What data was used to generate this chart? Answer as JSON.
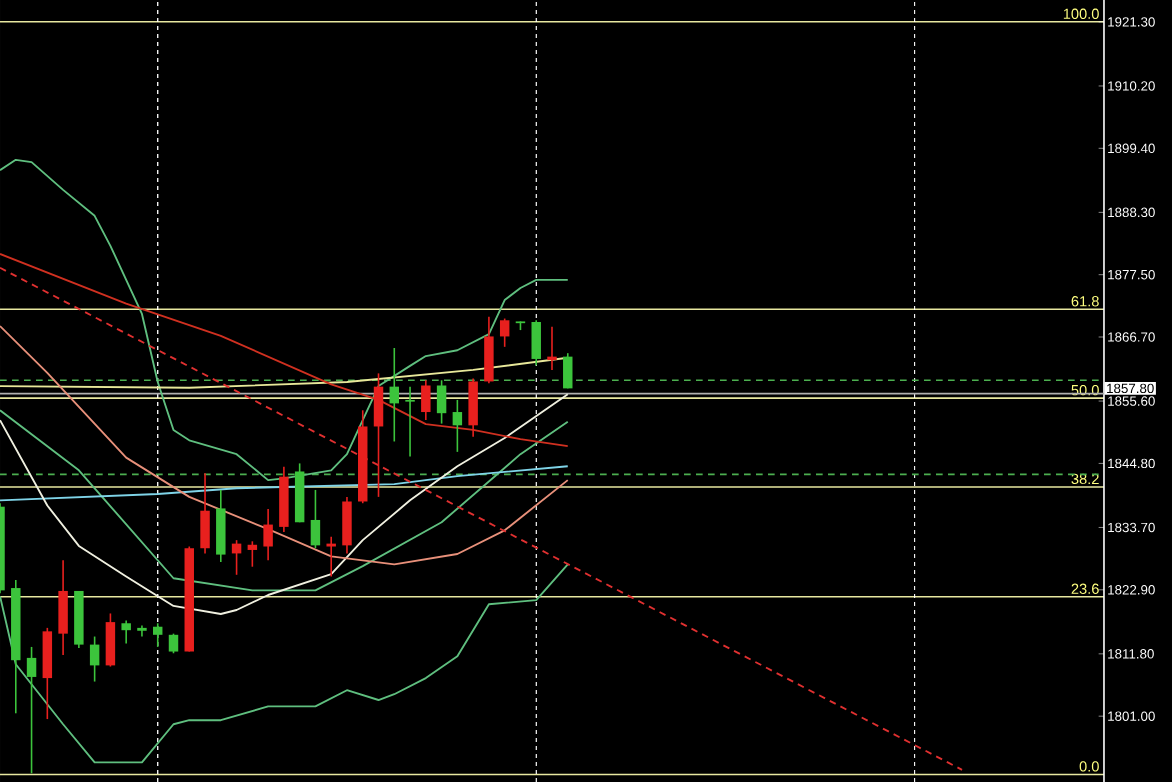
{
  "chart_data": {
    "type": "candlestick",
    "categories": [
      null,
      null,
      null,
      null,
      null,
      null,
      null,
      null,
      null,
      null,
      null,
      null,
      null,
      null,
      null,
      null,
      null,
      null,
      null,
      null,
      null,
      null,
      null,
      null,
      null,
      null,
      null,
      null,
      null,
      null,
      null,
      null,
      null,
      null,
      null,
      null,
      null,
      null,
      null,
      null,
      null,
      null,
      null,
      null,
      null,
      null,
      null,
      null,
      null,
      null,
      null,
      null,
      null,
      null,
      null,
      null,
      null,
      null,
      null,
      null,
      null,
      null,
      null,
      null,
      null,
      null,
      null,
      null,
      null,
      null,
      null
    ],
    "ylim": [
      1789.6,
      1925.1
    ],
    "yticks": [
      {
        "value": 1921.3,
        "label": "1921.30"
      },
      {
        "value": 1910.2,
        "label": "1910.20"
      },
      {
        "value": 1899.4,
        "label": "1899.40"
      },
      {
        "value": 1888.3,
        "label": "1888.30"
      },
      {
        "value": 1877.5,
        "label": "1877.50"
      },
      {
        "value": 1866.7,
        "label": "1866.70"
      },
      {
        "value": 1855.6,
        "label": "1855.60"
      },
      {
        "value": 1844.8,
        "label": "1844.80"
      },
      {
        "value": 1833.7,
        "label": "1833.70"
      },
      {
        "value": 1822.9,
        "label": "1822.90"
      },
      {
        "value": 1811.8,
        "label": "1811.80"
      },
      {
        "value": 1801.0,
        "label": "1801.00"
      }
    ],
    "y2lim": [
      -1.0,
      102.9
    ],
    "y2ticks": [
      {
        "value": 0,
        "label": "0.0"
      },
      {
        "value": 23.6,
        "label": "23.6"
      },
      {
        "value": 38.2,
        "label": "38.2"
      },
      {
        "value": 50,
        "label": "50.0"
      },
      {
        "value": 61.8,
        "label": "61.8"
      },
      {
        "value": 100,
        "label": "100.0"
      }
    ],
    "marker": "none",
    "grid": "x",
    "series": [
      {
        "type": "line",
        "color": "#5fbf7f",
        "values": [
          1895.6,
          1897.4,
          1897.0,
          null,
          1892.2,
          null,
          1887.7,
          1882.5,
          null,
          1870.7,
          1858.9,
          1850.6,
          1848.8,
          null,
          null,
          1846.4,
          null,
          1841.9,
          1842.2,
          null,
          null,
          1843.6,
          1846.4,
          1852.3,
          1858.2,
          null,
          1861.7,
          1863.4,
          null,
          1864.4,
          null,
          1867.2,
          1873.1,
          1875.2,
          1876.6,
          null,
          1876.6,
          null,
          null,
          null,
          null,
          null,
          null,
          null,
          null,
          null,
          null,
          null,
          null,
          null,
          null,
          null,
          null,
          null,
          null,
          null,
          null,
          null,
          null,
          null,
          null,
          null,
          null,
          null,
          null,
          null,
          null,
          null,
          null,
          null,
          null
        ]
      },
      {
        "type": "line",
        "color": "#5fbf7f",
        "values": [
          1854.0,
          null,
          null,
          null,
          null,
          1843.6,
          null,
          null,
          null,
          null,
          null,
          1824.9,
          null,
          null,
          null,
          null,
          1822.8,
          null,
          null,
          null,
          1822.8,
          null,
          null,
          1827.0,
          null,
          null,
          null,
          null,
          1834.6,
          null,
          null,
          null,
          null,
          1846.4,
          null,
          null,
          1852.0,
          null,
          null,
          null,
          null,
          null,
          null,
          null,
          null,
          null,
          null,
          null,
          null,
          null,
          null,
          null,
          null,
          null,
          null,
          null,
          null,
          null,
          null,
          null,
          null,
          null,
          null,
          null,
          null,
          null,
          null,
          null,
          null,
          null,
          null
        ]
      },
      {
        "type": "line",
        "color": "#5fbf7f",
        "values": [
          1821.8,
          1810.0,
          null,
          null,
          1799.6,
          null,
          1793.0,
          null,
          null,
          1793.0,
          null,
          1799.6,
          1800.3,
          null,
          1800.3,
          null,
          null,
          1802.7,
          null,
          null,
          1802.7,
          null,
          1805.5,
          null,
          1803.8,
          1804.8,
          null,
          1807.6,
          null,
          1811.4,
          null,
          1820.4,
          null,
          null,
          1821.1,
          null,
          1827.3,
          null,
          null,
          null,
          null,
          null,
          null,
          null,
          null,
          null,
          null,
          null,
          null,
          null,
          null,
          null,
          null,
          null,
          null,
          null,
          null,
          null,
          null,
          null,
          null,
          null,
          null,
          null,
          null,
          null,
          null,
          null,
          null,
          null,
          null
        ]
      },
      {
        "type": "line",
        "color": "#7fd4e8",
        "values": [
          1838.4,
          null,
          null,
          null,
          null,
          null,
          null,
          null,
          null,
          null,
          1839.5,
          null,
          null,
          null,
          null,
          1840.5,
          null,
          null,
          null,
          null,
          null,
          null,
          null,
          null,
          null,
          1841.2,
          null,
          null,
          null,
          1842.6,
          null,
          null,
          null,
          null,
          null,
          null,
          1844.3,
          null,
          null,
          null,
          null,
          null,
          null,
          null,
          null,
          null,
          null,
          null,
          null,
          null,
          null,
          null,
          null,
          null,
          null,
          null,
          null,
          null,
          null,
          null,
          null,
          null,
          null,
          null,
          null,
          null,
          null,
          null,
          null,
          null,
          null
        ]
      },
      {
        "type": "line",
        "color": "#e8e89a",
        "values": [
          1858.2,
          null,
          null,
          null,
          null,
          null,
          null,
          null,
          null,
          null,
          null,
          null,
          1857.9,
          null,
          null,
          null,
          null,
          null,
          null,
          null,
          null,
          null,
          1858.9,
          null,
          null,
          null,
          null,
          null,
          null,
          null,
          1861.0,
          null,
          null,
          null,
          null,
          null,
          1863.1,
          null,
          null,
          null,
          null,
          null,
          null,
          null,
          null,
          null,
          null,
          null,
          null,
          null,
          null,
          null,
          null,
          null,
          null,
          null,
          null,
          null,
          null,
          null,
          null,
          null,
          null,
          null,
          null,
          null,
          null,
          null,
          null,
          null,
          null
        ]
      },
      {
        "type": "line",
        "color": "#f0f0e0",
        "values": [
          1852.3,
          null,
          null,
          1837.5,
          null,
          1830.5,
          null,
          null,
          1825.2,
          null,
          null,
          1820.1,
          null,
          null,
          1818.7,
          1819.4,
          null,
          1822.0,
          null,
          null,
          null,
          1825.6,
          null,
          1831.5,
          null,
          null,
          1838.4,
          null,
          null,
          1844.3,
          null,
          null,
          1849.2,
          null,
          null,
          null,
          1856.8,
          null,
          null,
          null,
          null,
          null,
          null,
          null,
          null,
          null,
          null,
          null,
          null,
          null,
          null,
          null,
          null,
          null,
          null,
          null,
          null,
          null,
          null,
          null,
          null,
          null,
          null,
          null,
          null,
          null,
          null,
          null,
          null,
          null,
          null
        ]
      },
      {
        "type": "line",
        "color": "#e8907a",
        "values": [
          1868.6,
          null,
          null,
          1860.5,
          null,
          null,
          null,
          null,
          1845.8,
          null,
          null,
          null,
          1839.0,
          null,
          null,
          null,
          null,
          1833.4,
          null,
          null,
          null,
          1828.7,
          null,
          null,
          null,
          1827.3,
          null,
          null,
          null,
          1829.1,
          null,
          null,
          1833.2,
          null,
          null,
          null,
          1841.9,
          null,
          null,
          null,
          null,
          null,
          null,
          null,
          null,
          null,
          null,
          null,
          null,
          null,
          null,
          null,
          null,
          null,
          null,
          null,
          null,
          null,
          null,
          null,
          null,
          null,
          null,
          null,
          null,
          null,
          null,
          null,
          null,
          null,
          null
        ]
      },
      {
        "type": "line",
        "color": "#d03020",
        "values": [
          1881.1,
          null,
          null,
          null,
          null,
          null,
          null,
          null,
          1872.5,
          null,
          null,
          null,
          null,
          null,
          1866.9,
          null,
          null,
          null,
          null,
          null,
          null,
          1858.5,
          null,
          null,
          1855.8,
          null,
          null,
          1851.6,
          null,
          null,
          1850.6,
          null,
          null,
          1849.0,
          null,
          null,
          1847.8,
          null,
          null,
          null,
          null,
          null,
          null,
          null,
          null,
          null,
          null,
          null,
          null,
          null,
          null,
          null,
          null,
          null,
          null,
          null,
          null,
          null,
          null,
          null,
          null,
          null,
          null,
          null,
          null,
          null,
          null,
          null,
          null,
          null,
          null
        ]
      },
      {
        "type": "line",
        "color": "#e03030",
        "line_style": "dashed",
        "values": [
          1878.7,
          null,
          null,
          null,
          null,
          null,
          null,
          null,
          null,
          null,
          null,
          null,
          null,
          null,
          null,
          null,
          null,
          null,
          null,
          null,
          null,
          null,
          null,
          null,
          null,
          null,
          null,
          null,
          null,
          null,
          null,
          null,
          null,
          null,
          null,
          null,
          null,
          null,
          null,
          null,
          null,
          null,
          null,
          null,
          null,
          null,
          null,
          null,
          null,
          null,
          null,
          null,
          null,
          null,
          null,
          null,
          null,
          null,
          null,
          null,
          null,
          1791.7,
          null,
          null,
          null,
          null,
          null,
          null,
          null,
          null,
          null
        ]
      },
      {
        "colors": [
          "#3cc43c",
          "#3cc43c",
          "#3cc43c",
          "#e8201e",
          "#e8201e",
          "#3cc43c",
          "#3cc43c",
          "#e8201e",
          "#3cc43c",
          "#3cc43c",
          "#3cc43c",
          "#3cc43c",
          "#e8201e",
          "#e8201e",
          "#3cc43c",
          "#e8201e",
          "#e8201e",
          "#e8201e",
          "#e8201e",
          "#3cc43c",
          "#3cc43c",
          "#e8201e",
          "#e8201e",
          "#e8201e",
          "#e8201e",
          "#3cc43c",
          "#3cc43c",
          "#e8201e",
          "#3cc43c",
          "#3cc43c",
          "#e8201e",
          "#e8201e",
          "#e8201e",
          "#3cc43c",
          "#3cc43c",
          "#e8201e",
          "#3cc43c",
          null,
          null,
          null,
          null,
          null,
          null,
          null,
          null,
          null,
          null,
          null,
          null,
          null,
          null,
          null,
          null,
          null,
          null,
          null,
          null,
          null,
          null,
          null,
          null,
          null,
          null,
          null,
          null,
          null,
          null,
          null,
          null,
          null,
          null
        ],
        "ohlc": [
          [
            1837.3,
            1837.9,
            1822.3,
            1822.8
          ],
          [
            1823.2,
            1824.6,
            1801.5,
            1810.7
          ],
          [
            1811.1,
            1813.0,
            1791.1,
            1807.8
          ],
          [
            1807.6,
            1816.3,
            1800.5,
            1815.7
          ],
          [
            1815.3,
            1828.0,
            1811.6,
            1822.7
          ],
          [
            1822.7,
            1822.7,
            1812.8,
            1813.4
          ],
          [
            1813.4,
            1814.8,
            1807.0,
            1809.8
          ],
          [
            1809.8,
            1818.8,
            1809.6,
            1817.3
          ],
          [
            1817.1,
            1817.6,
            1813.6,
            1815.9
          ],
          [
            1816.3,
            1816.7,
            1814.8,
            1815.8
          ],
          [
            1816.5,
            1817.1,
            1813.0,
            1815.1
          ],
          [
            1815.1,
            1815.3,
            1811.9,
            1812.2
          ],
          [
            1812.2,
            1830.4,
            1812.2,
            1830.1
          ],
          [
            1830.1,
            1843.1,
            1829.2,
            1836.6
          ],
          [
            1837.0,
            1840.2,
            1827.7,
            1829.0
          ],
          [
            1829.2,
            1831.5,
            1825.5,
            1830.9
          ],
          [
            1829.8,
            1831.3,
            1826.9,
            1830.7
          ],
          [
            1830.4,
            1836.9,
            1828.0,
            1834.2
          ],
          [
            1833.8,
            1844.2,
            1832.9,
            1842.5
          ],
          [
            1843.4,
            1844.8,
            1834.6,
            1834.6
          ],
          [
            1835.0,
            1840.2,
            1830.1,
            1830.6
          ],
          [
            1830.4,
            1832.1,
            1825.2,
            1830.9
          ],
          [
            1830.6,
            1839.0,
            1829.2,
            1838.2
          ],
          [
            1838.2,
            1854.0,
            1837.9,
            1851.2
          ],
          [
            1851.2,
            1860.4,
            1839.0,
            1858.1
          ],
          [
            1858.1,
            1864.8,
            1848.6,
            1855.2
          ],
          [
            1855.8,
            1858.1,
            1846.0,
            1855.5
          ],
          [
            1853.7,
            1859.2,
            1852.3,
            1858.3
          ],
          [
            1858.3,
            1859.2,
            1851.7,
            1853.5
          ],
          [
            1853.7,
            1855.8,
            1846.8,
            1851.4
          ],
          [
            1851.4,
            1859.5,
            1849.4,
            1859.0
          ],
          [
            1859.0,
            1870.2,
            1858.7,
            1866.8
          ],
          [
            1866.8,
            1869.9,
            1865.0,
            1869.6
          ],
          [
            1869.4,
            1869.4,
            1867.9,
            1869.1
          ],
          [
            1869.3,
            1869.6,
            1861.8,
            1862.9
          ],
          [
            1862.7,
            1868.5,
            1861.0,
            1863.3
          ],
          [
            1863.3,
            1863.9,
            1857.8,
            1857.8
          ],
          null,
          null,
          null,
          null,
          null,
          null,
          null,
          null,
          null,
          null,
          null,
          null,
          null,
          null,
          null,
          null,
          null,
          null,
          null,
          null,
          null,
          null,
          null,
          null,
          null,
          null,
          null,
          null,
          null,
          null,
          null,
          null,
          null,
          null
        ]
      }
    ],
    "ref_lines": [
      {
        "axis": "y2",
        "value": 100,
        "color": "#e8e8a0"
      },
      {
        "axis": "y2",
        "value": 61.8,
        "color": "#e8e8a0"
      },
      {
        "axis": "y",
        "value": 1859.2,
        "color": "#4caf50",
        "line_style": "dashed"
      },
      {
        "axis": "y",
        "value": 1856.9,
        "color": "#b0b0b0"
      },
      {
        "axis": "y2",
        "value": 50,
        "color": "#e8e8a0"
      },
      {
        "axis": "y",
        "value": 1842.9,
        "color": "#4caf50",
        "line_style": "dashed"
      },
      {
        "axis": "y2",
        "value": 38.2,
        "color": "#e8e8a0"
      },
      {
        "axis": "y2",
        "value": 23.6,
        "color": "#e8e8a0"
      },
      {
        "axis": "y2",
        "value": 0,
        "color": "#e8e8a0"
      }
    ],
    "annotations": [
      "1857.80"
    ]
  }
}
